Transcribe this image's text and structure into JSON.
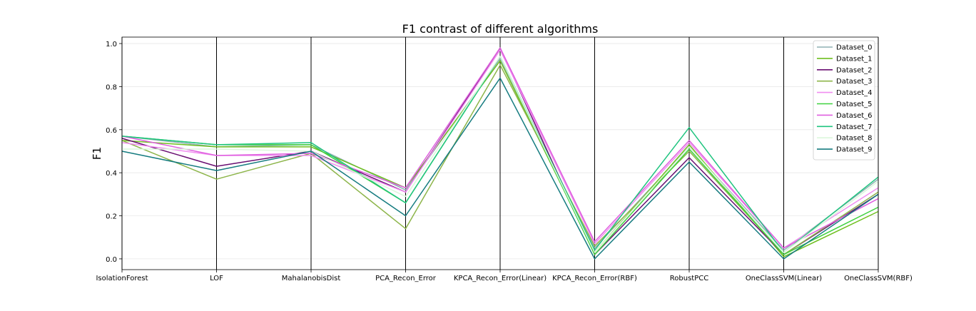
{
  "chart_data": {
    "type": "line",
    "title": "F1 contrast of different algorithms",
    "xlabel": "",
    "ylabel": "F1",
    "ylim": [
      -0.05,
      1.03
    ],
    "yticks": [
      "0.0",
      "0.2",
      "0.4",
      "0.6",
      "0.8",
      "1.0"
    ],
    "grid": true,
    "legend_position": "top-right",
    "categories": [
      "IsolationForest",
      "LOF",
      "MahalanobisDist",
      "PCA_Recon_Error",
      "KPCA_Recon_Error(Linear)",
      "KPCA_Recon_Error(RBF)",
      "RobustPCC",
      "OneClassSVM(Linear)",
      "OneClassSVM(RBF)"
    ],
    "series": [
      {
        "name": "Dataset_0",
        "color": "#8fb1b4",
        "values": [
          0.57,
          0.52,
          0.53,
          0.32,
          0.93,
          0.05,
          0.52,
          0.04,
          0.37
        ]
      },
      {
        "name": "Dataset_1",
        "color": "#6fbf1f",
        "values": [
          0.55,
          0.52,
          0.52,
          0.33,
          0.92,
          0.03,
          0.53,
          0.01,
          0.22
        ]
      },
      {
        "name": "Dataset_2",
        "color": "#6a0f72",
        "values": [
          0.56,
          0.43,
          0.5,
          0.31,
          0.98,
          0.02,
          0.47,
          0.02,
          0.3
        ]
      },
      {
        "name": "Dataset_3",
        "color": "#8db54a",
        "values": [
          0.55,
          0.37,
          0.49,
          0.14,
          0.9,
          0.06,
          0.5,
          0.02,
          0.31
        ]
      },
      {
        "name": "Dataset_4",
        "color": "#f08ef0",
        "values": [
          0.54,
          0.48,
          0.48,
          0.31,
          0.97,
          0.07,
          0.54,
          0.05,
          0.33
        ]
      },
      {
        "name": "Dataset_5",
        "color": "#3fd13f",
        "values": [
          0.57,
          0.53,
          0.53,
          0.26,
          0.94,
          0.02,
          0.51,
          0.02,
          0.24
        ]
      },
      {
        "name": "Dataset_6",
        "color": "#df5fdf",
        "values": [
          0.57,
          0.48,
          0.49,
          0.33,
          0.98,
          0.08,
          0.55,
          0.05,
          0.28
        ]
      },
      {
        "name": "Dataset_7",
        "color": "#1fc47f",
        "values": [
          0.57,
          0.53,
          0.54,
          0.26,
          0.94,
          0.04,
          0.61,
          0.03,
          0.38
        ]
      },
      {
        "name": "Dataset_8",
        "color": "#dcf7dc",
        "values": [
          0.51,
          0.51,
          0.5,
          0.29,
          0.94,
          0.03,
          0.52,
          0.03,
          0.36
        ]
      },
      {
        "name": "Dataset_9",
        "color": "#167c80",
        "values": [
          0.5,
          0.41,
          0.5,
          0.2,
          0.84,
          0.0,
          0.45,
          0.0,
          0.3
        ]
      }
    ]
  }
}
